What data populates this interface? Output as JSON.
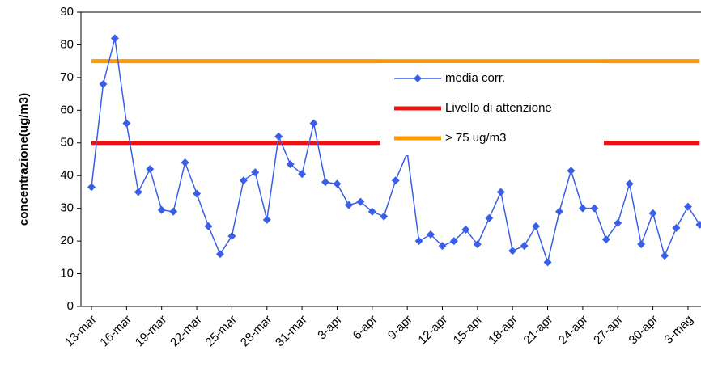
{
  "chart_data": {
    "type": "line",
    "y_label": "concentrazione(ug/m3)",
    "categories": [
      "13-mar",
      null,
      null,
      "16-mar",
      null,
      null,
      "19-mar",
      null,
      null,
      "22-mar",
      null,
      null,
      "25-mar",
      null,
      null,
      "28-mar",
      null,
      null,
      "31-mar",
      null,
      null,
      "3-apr",
      null,
      null,
      "6-apr",
      null,
      null,
      "9-apr",
      null,
      null,
      "12-apr",
      null,
      null,
      "15-apr",
      null,
      null,
      "18-apr",
      null,
      null,
      "21-apr",
      null,
      null,
      "24-apr",
      null,
      null,
      "27-apr",
      null,
      null,
      "30-apr",
      null,
      null,
      "3-mag",
      null
    ],
    "series": [
      {
        "name": "media corr.",
        "color": "#3b5ee8",
        "marker": "diamond",
        "values": [
          36.5,
          68,
          82,
          56,
          35,
          42,
          29.5,
          29,
          44,
          34.5,
          24.5,
          16,
          21.5,
          38.5,
          41,
          26.5,
          52,
          43.5,
          40.5,
          56,
          38,
          37.5,
          31,
          32,
          29,
          27.5,
          38.5,
          47,
          20,
          22,
          18.5,
          20,
          23.5,
          19,
          27,
          35,
          17,
          18.5,
          24.5,
          13.5,
          29,
          41.5,
          30,
          30,
          20.5,
          25.5,
          37.5,
          19,
          28.5,
          15.5,
          24,
          30.5,
          25
        ]
      },
      {
        "name": "Livello di attenzione",
        "color": "#ee1111",
        "values": [
          50,
          50,
          50,
          50,
          50,
          50,
          50,
          50,
          50,
          50,
          50,
          50,
          50,
          50,
          50,
          50,
          50,
          50,
          50,
          50,
          50,
          50,
          50,
          50,
          50,
          50,
          50,
          50,
          50,
          50,
          50,
          50,
          50,
          50,
          50,
          50,
          50,
          50,
          50,
          50,
          50,
          50,
          50,
          50,
          50,
          50,
          50,
          50,
          50,
          50,
          50,
          50,
          50
        ]
      },
      {
        "name": "> 75 ug/m3",
        "color": "#ff9900",
        "values": [
          75,
          75,
          75,
          75,
          75,
          75,
          75,
          75,
          75,
          75,
          75,
          75,
          75,
          75,
          75,
          75,
          75,
          75,
          75,
          75,
          75,
          75,
          75,
          75,
          75,
          75,
          75,
          75,
          75,
          75,
          75,
          75,
          75,
          75,
          75,
          75,
          75,
          75,
          75,
          75,
          75,
          75,
          75,
          75,
          75,
          75,
          75,
          75,
          75,
          75,
          75,
          75,
          75
        ]
      }
    ],
    "ylim": [
      0,
      90
    ],
    "yticks": [
      0,
      10,
      20,
      30,
      40,
      50,
      60,
      70,
      80,
      90
    ]
  }
}
